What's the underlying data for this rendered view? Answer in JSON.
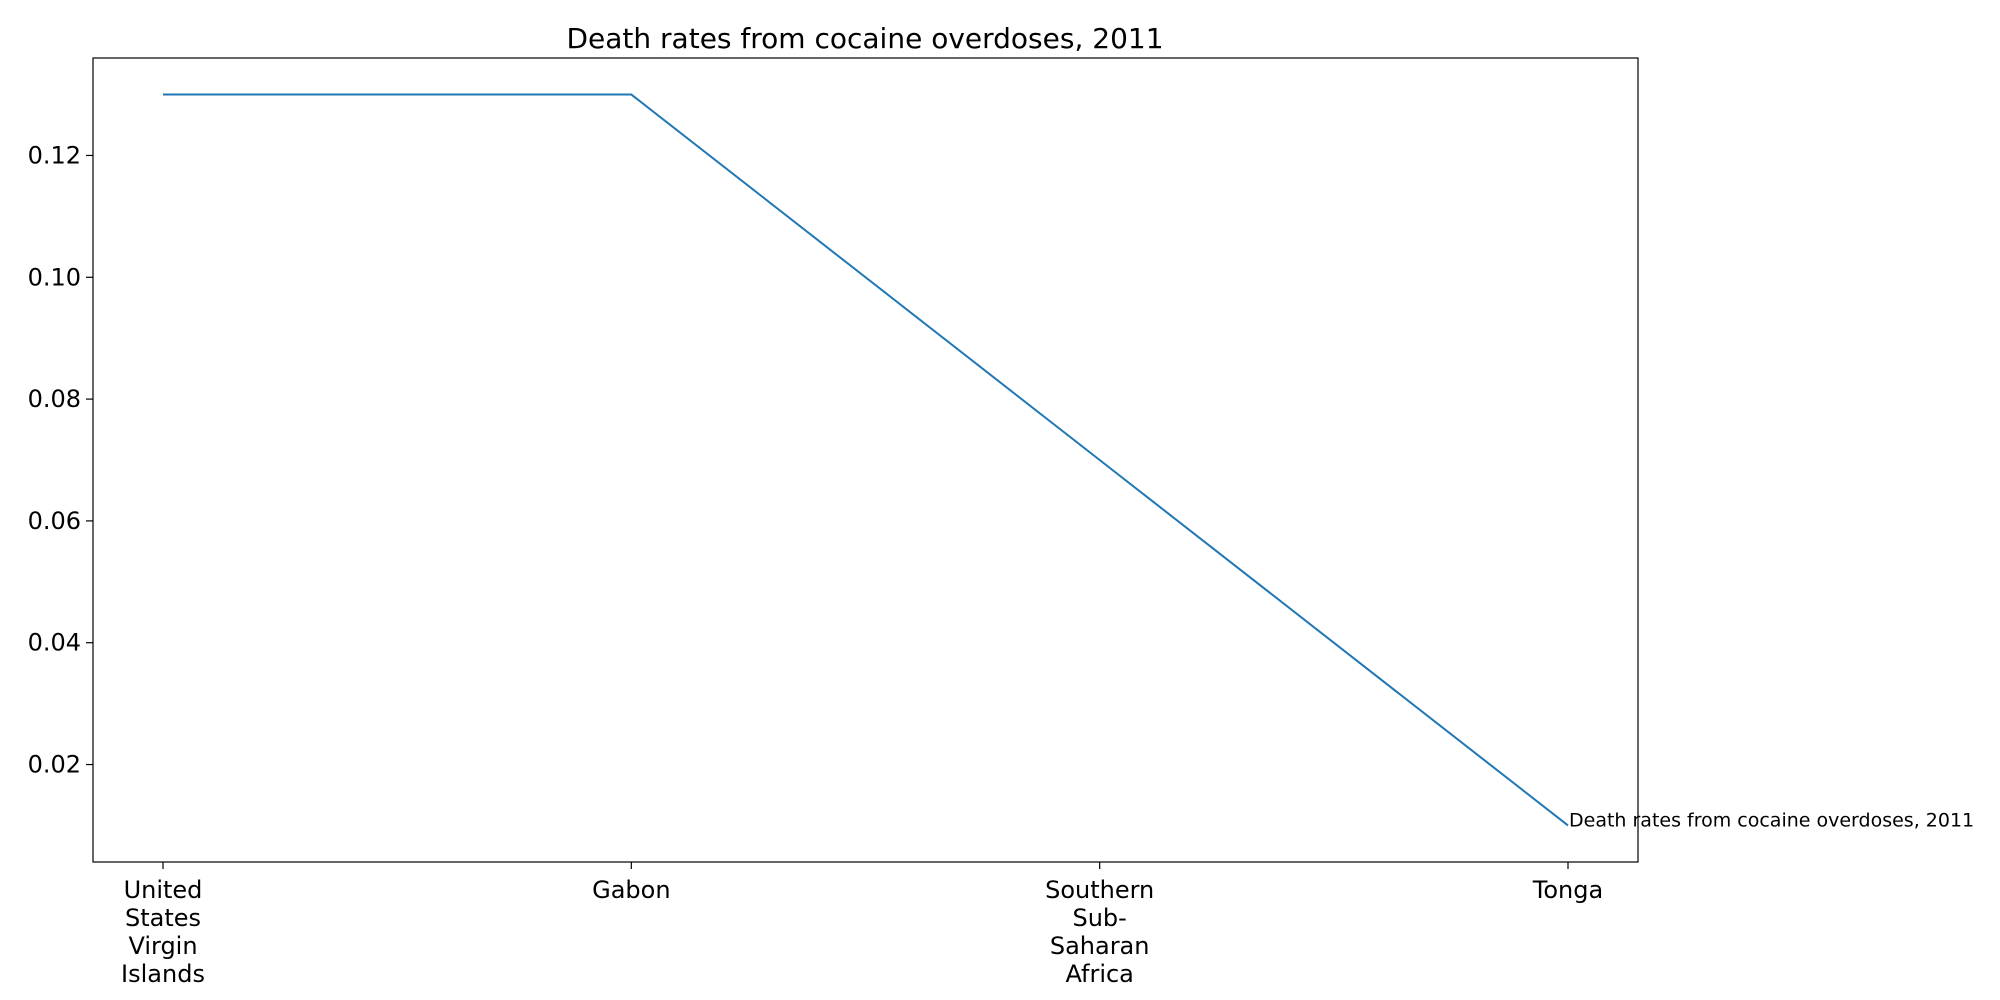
{
  "chart_data": {
    "type": "line",
    "title": "Death rates from cocaine overdoses, 2011",
    "categories": [
      "United States Virgin Islands",
      "Gabon",
      "Southern Sub-Saharan Africa",
      "Tonga"
    ],
    "category_label_lines": [
      [
        "United",
        "States",
        "Virgin",
        "Islands"
      ],
      [
        "Gabon"
      ],
      [
        "Southern",
        "Sub-",
        "Saharan",
        "Africa"
      ],
      [
        "Tonga"
      ]
    ],
    "series": [
      {
        "name": "Death rates from cocaine overdoses, 2011",
        "values": [
          0.13,
          0.13,
          0.07,
          0.01
        ],
        "color": "#1f77b4"
      }
    ],
    "yticks": [
      0.02,
      0.04,
      0.06,
      0.08,
      0.1,
      0.12
    ],
    "ytick_labels": [
      "0.02",
      "0.04",
      "0.06",
      "0.08",
      "0.10",
      "0.12"
    ],
    "ylim": [
      0.004,
      0.136
    ],
    "xlabel": "",
    "ylabel": "",
    "grid": false,
    "legend": "none",
    "end_label": "Death rates from cocaine overdoses, 2011"
  }
}
